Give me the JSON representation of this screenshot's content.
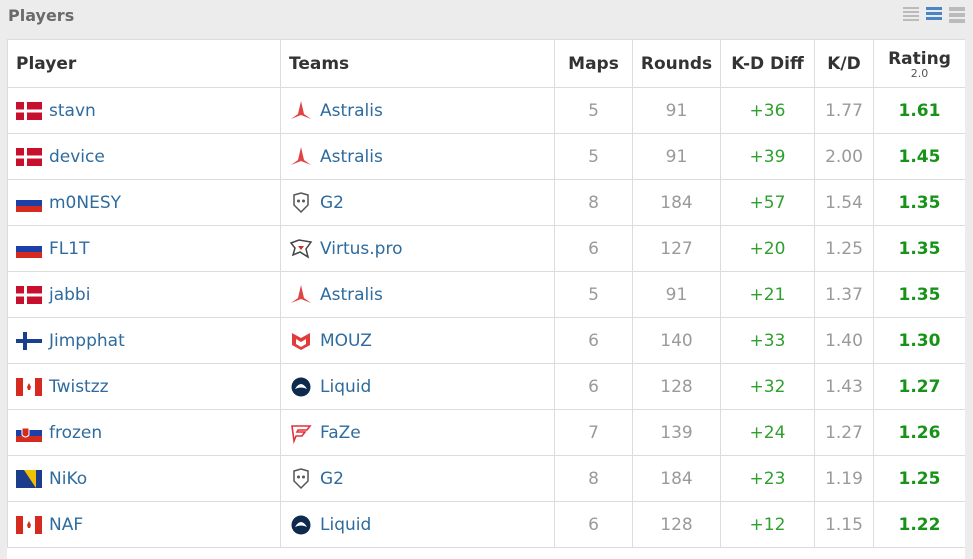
{
  "header": {
    "title": "Players"
  },
  "table": {
    "columns": [
      "Player",
      "Teams",
      "Maps",
      "Rounds",
      "K-D Diff",
      "K/D",
      "Rating"
    ],
    "rating_sub": "2.0",
    "rows": [
      [
        "stavn",
        "Astralis",
        5,
        91,
        "+36",
        "1.77",
        "1.61"
      ],
      [
        "device",
        "Astralis",
        5,
        91,
        "+39",
        "2.00",
        "1.45"
      ],
      [
        "m0NESY",
        "G2",
        8,
        184,
        "+57",
        "1.54",
        "1.35"
      ],
      [
        "FL1T",
        "Virtus.pro",
        6,
        127,
        "+20",
        "1.25",
        "1.35"
      ],
      [
        "jabbi",
        "Astralis",
        5,
        91,
        "+21",
        "1.37",
        "1.35"
      ],
      [
        "Jimpphat",
        "MOUZ",
        6,
        140,
        "+33",
        "1.40",
        "1.30"
      ],
      [
        "Twistzz",
        "Liquid",
        6,
        128,
        "+32",
        "1.43",
        "1.27"
      ],
      [
        "frozen",
        "FaZe",
        7,
        139,
        "+24",
        "1.27",
        "1.26"
      ],
      [
        "NiKo",
        "G2",
        8,
        184,
        "+23",
        "1.19",
        "1.25"
      ],
      [
        "NAF",
        "Liquid",
        6,
        128,
        "+12",
        "1.15",
        "1.22"
      ]
    ]
  }
}
